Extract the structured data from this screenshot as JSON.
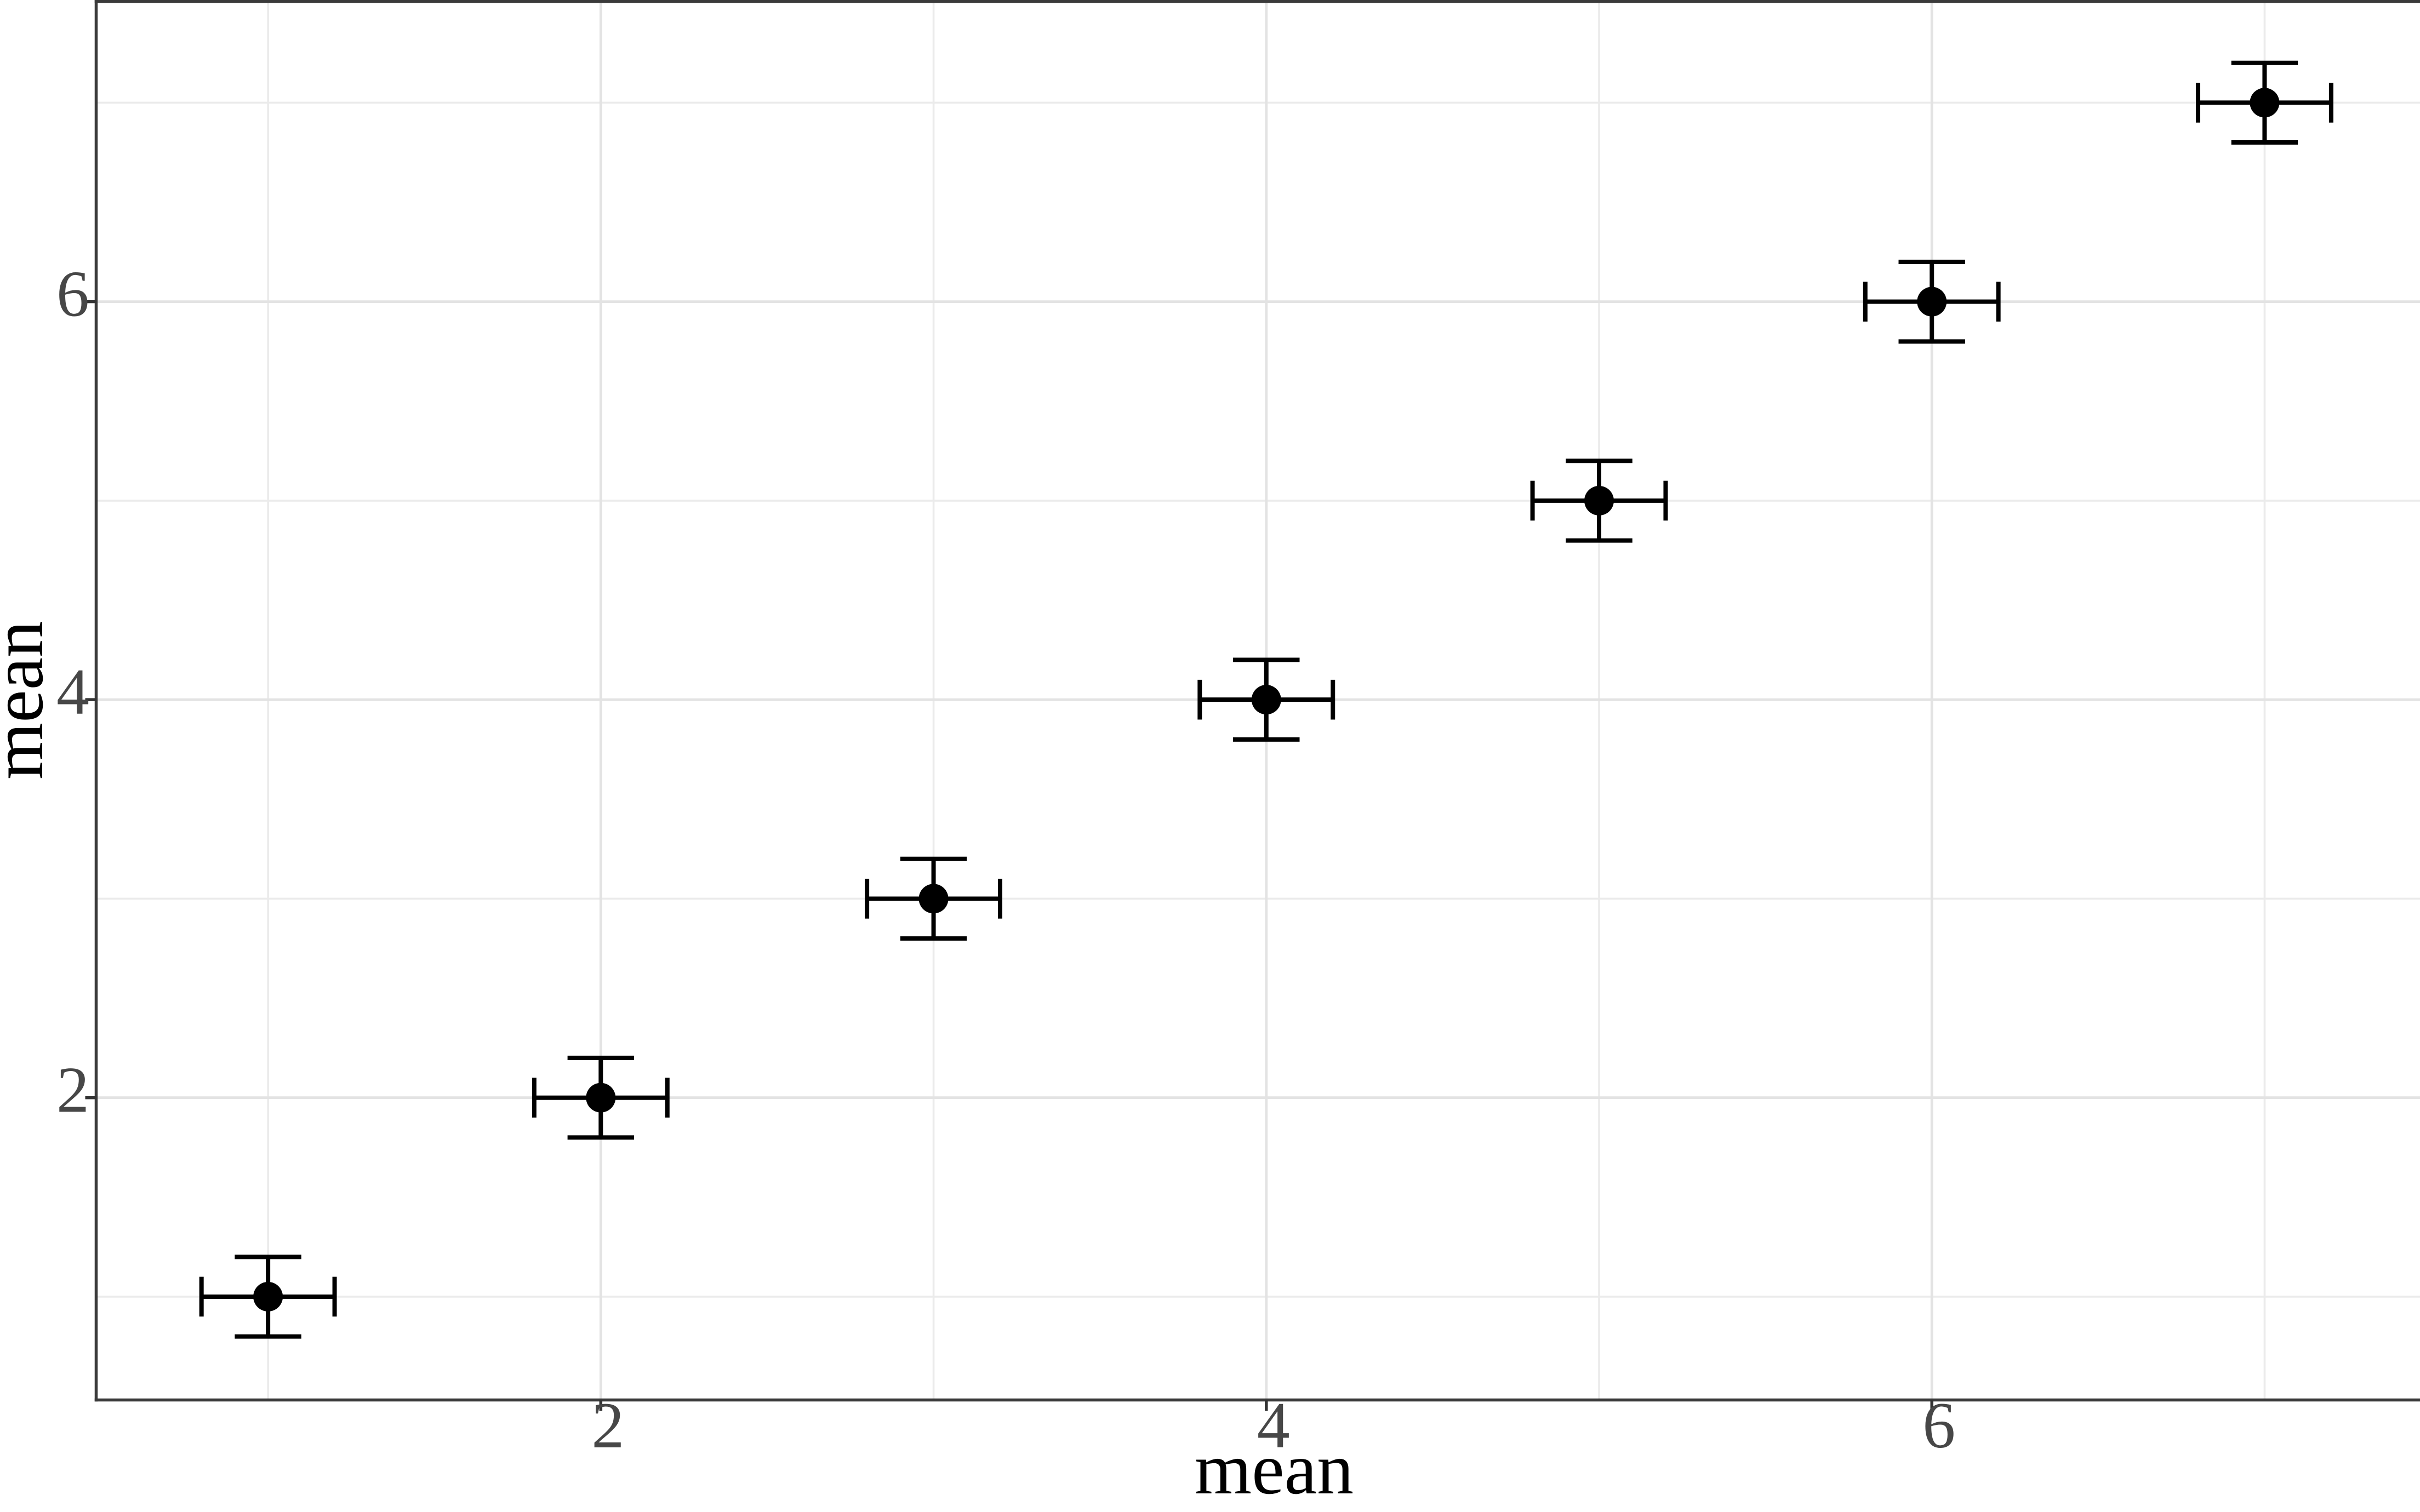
{
  "chart_data": {
    "type": "scatter",
    "title": "",
    "xlabel": "mean",
    "ylabel": "mean",
    "points": [
      {
        "x": 1,
        "y": 1,
        "xerr": 0.2,
        "yerr": 0.2
      },
      {
        "x": 2,
        "y": 2,
        "xerr": 0.2,
        "yerr": 0.2
      },
      {
        "x": 3,
        "y": 3,
        "xerr": 0.2,
        "yerr": 0.2
      },
      {
        "x": 4,
        "y": 4,
        "xerr": 0.2,
        "yerr": 0.2
      },
      {
        "x": 5,
        "y": 5,
        "xerr": 0.2,
        "yerr": 0.2
      },
      {
        "x": 6,
        "y": 6,
        "xerr": 0.2,
        "yerr": 0.2
      },
      {
        "x": 7,
        "y": 7,
        "xerr": 0.2,
        "yerr": 0.2
      }
    ],
    "x_major_ticks": [
      2,
      4,
      6
    ],
    "y_major_ticks": [
      2,
      4,
      6
    ],
    "x_tick_labels": [
      "2",
      "4",
      "6"
    ],
    "y_tick_labels": [
      "2",
      "4",
      "6"
    ],
    "x_minor_gridlines": [
      1,
      3,
      5,
      7
    ],
    "y_minor_gridlines": [
      1,
      3,
      5,
      7
    ],
    "xlim": [
      0.4835,
      7.467
    ],
    "ylim": [
      0.481,
      7.509
    ],
    "grid": true,
    "legend": "none",
    "error_cap_half_x_units": 0.1,
    "error_cap_half_y_units": 0.1,
    "colors": {
      "point": "#000000",
      "error_bar": "#000000",
      "grid_major": "#e3e3e3",
      "grid_minor": "#ebebeb",
      "axis_line": "#3a3a3a",
      "tick_mark": "#333333",
      "tick_label": "#474747",
      "axis_title": "#000000",
      "panel_background": "#ffffff"
    }
  }
}
